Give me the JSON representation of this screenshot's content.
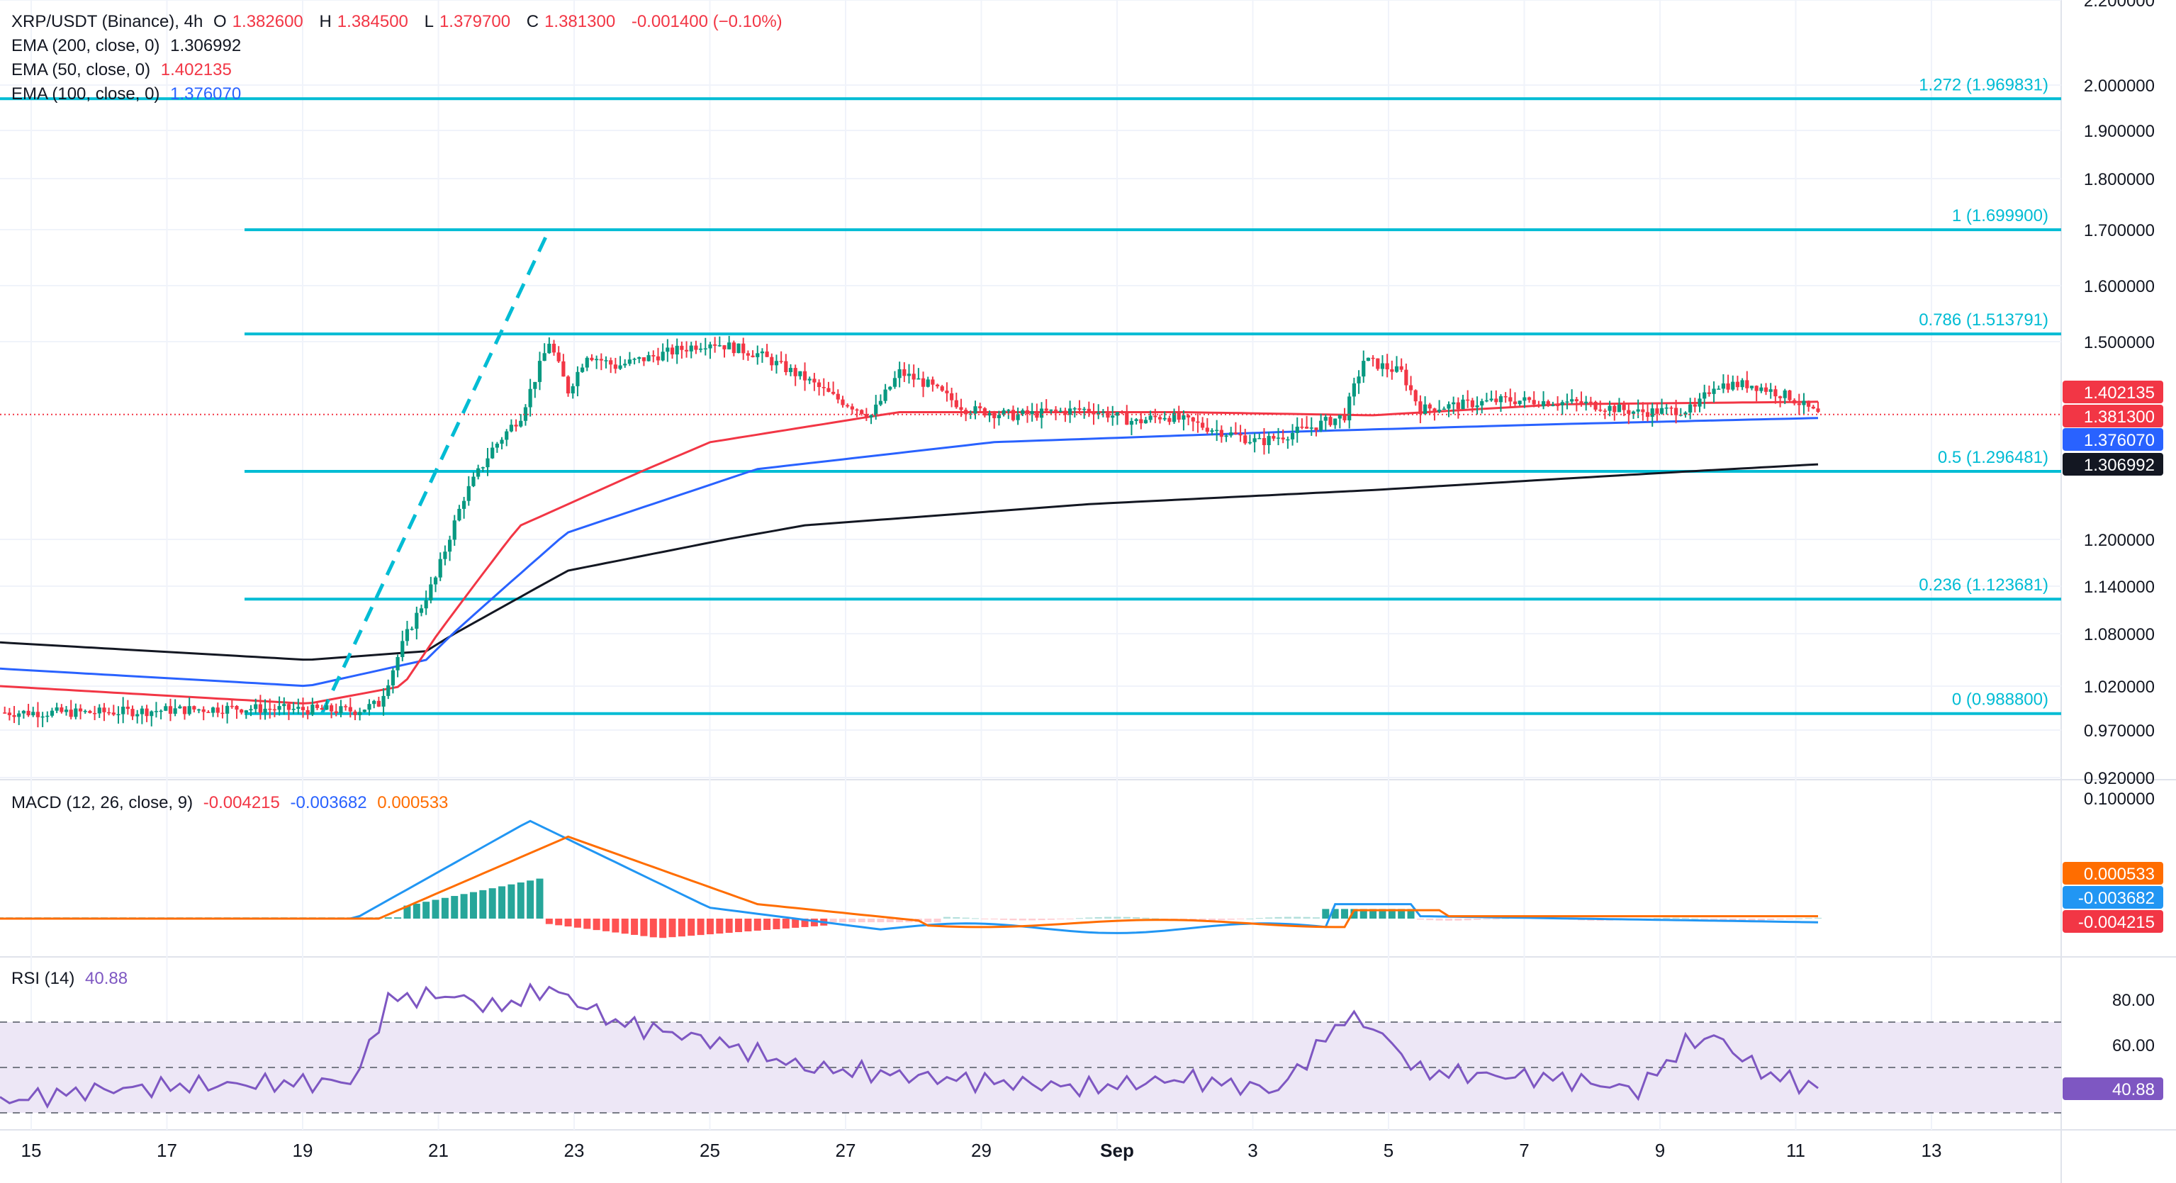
{
  "symbol": {
    "title": "XRP/USDT (Binance), 4h",
    "open_label": "O",
    "open": "1.382600",
    "high_label": "H",
    "high": "1.384500",
    "low_label": "L",
    "low": "1.379700",
    "close_label": "C",
    "close": "1.381300",
    "change": "-0.001400 (−0.10%)"
  },
  "ema_legend": [
    {
      "label": "EMA (200, close, 0)",
      "value": "1.306992",
      "color": "#131722"
    },
    {
      "label": "EMA (50, close, 0)",
      "value": "1.402135",
      "color": "#f23645"
    },
    {
      "label": "EMA (100, close, 0)",
      "value": "1.376070",
      "color": "#2962ff"
    }
  ],
  "macd_legend": {
    "label": "MACD (12, 26, close, 9)",
    "hist": "-0.004215",
    "macd": "-0.003682",
    "signal": "0.000533"
  },
  "rsi_legend": {
    "label": "RSI (14)",
    "value": "40.88"
  },
  "colors": {
    "up": "#089981",
    "down": "#f23645",
    "fib": "#00bcd4",
    "ema200": "#131722",
    "ema50": "#f23645",
    "ema100": "#2962ff",
    "macd": "#2196f3",
    "signal": "#ff6d00",
    "rsi": "#7e57c2",
    "rsi_band": "#ede7f6"
  },
  "chart_data": [
    {
      "type": "candlestick",
      "title": "XRP/USDT (Binance), 4h",
      "x_ticks": [
        "15",
        "17",
        "19",
        "21",
        "23",
        "25",
        "27",
        "29",
        "Sep",
        "3",
        "5",
        "7",
        "9",
        "11",
        "13"
      ],
      "y_ticks": [
        "0.920000",
        "0.970000",
        "1.020000",
        "1.080000",
        "1.140000",
        "1.200000",
        "1.500000",
        "1.600000",
        "1.700000",
        "1.800000",
        "1.900000",
        "2.000000",
        "2.200000"
      ],
      "fibonacci": [
        {
          "label": "1.272 (1.969831)",
          "value": 1.969831
        },
        {
          "label": "1 (1.699900)",
          "value": 1.6999
        },
        {
          "label": "0.786 (1.513791)",
          "value": 1.513791
        },
        {
          "label": "0.5 (1.296481)",
          "value": 1.296481
        },
        {
          "label": "0.236 (1.123681)",
          "value": 1.123681
        },
        {
          "label": "0 (0.988800)",
          "value": 0.9888
        }
      ],
      "price_tags": [
        {
          "value": "1.402135",
          "color": "#f23645"
        },
        {
          "value": "1.381300",
          "color": "#f23645"
        },
        {
          "value": "1.376070",
          "color": "#2962ff"
        },
        {
          "value": "1.306992",
          "color": "#131722"
        }
      ],
      "trend_line": {
        "from_date": "Aug 18",
        "from_price": 0.9888,
        "to_date": "Aug 22",
        "to_price": 1.6999
      },
      "current_price": 1.3813,
      "date_range": [
        "Aug 15",
        "Sep 10"
      ],
      "price_path": [
        [
          0,
          0.99
        ],
        [
          20,
          0.99
        ],
        [
          50,
          0.995
        ],
        [
          75,
          0.992
        ],
        [
          80,
          1.0
        ],
        [
          86,
          1.08
        ],
        [
          92,
          1.15
        ],
        [
          98,
          1.26
        ],
        [
          104,
          1.33
        ],
        [
          110,
          1.38
        ],
        [
          116,
          1.5
        ],
        [
          120,
          1.42
        ],
        [
          124,
          1.48
        ],
        [
          130,
          1.46
        ],
        [
          140,
          1.48
        ],
        [
          150,
          1.5
        ],
        [
          160,
          1.48
        ],
        [
          170,
          1.44
        ],
        [
          176,
          1.41
        ],
        [
          184,
          1.38
        ],
        [
          190,
          1.45
        ],
        [
          196,
          1.43
        ],
        [
          204,
          1.39
        ],
        [
          214,
          1.38
        ],
        [
          230,
          1.39
        ],
        [
          240,
          1.37
        ],
        [
          246,
          1.38
        ],
        [
          256,
          1.36
        ],
        [
          266,
          1.34
        ],
        [
          276,
          1.36
        ],
        [
          284,
          1.38
        ],
        [
          288,
          1.47
        ],
        [
          296,
          1.45
        ],
        [
          300,
          1.39
        ],
        [
          318,
          1.405
        ],
        [
          334,
          1.4
        ],
        [
          346,
          1.385
        ],
        [
          358,
          1.39
        ],
        [
          362,
          1.43
        ],
        [
          370,
          1.43
        ],
        [
          378,
          1.41
        ],
        [
          384,
          1.381
        ]
      ],
      "ema200_path": [
        [
          0,
          1.07
        ],
        [
          65,
          1.05
        ],
        [
          90,
          1.06
        ],
        [
          120,
          1.16
        ],
        [
          170,
          1.22
        ],
        [
          230,
          1.25
        ],
        [
          290,
          1.27
        ],
        [
          340,
          1.29
        ],
        [
          384,
          1.307
        ]
      ],
      "ema100_path": [
        [
          0,
          1.04
        ],
        [
          65,
          1.02
        ],
        [
          90,
          1.05
        ],
        [
          120,
          1.21
        ],
        [
          160,
          1.3
        ],
        [
          210,
          1.34
        ],
        [
          270,
          1.355
        ],
        [
          330,
          1.367
        ],
        [
          384,
          1.376
        ]
      ],
      "ema50_path": [
        [
          0,
          1.02
        ],
        [
          65,
          1.0
        ],
        [
          85,
          1.02
        ],
        [
          110,
          1.22
        ],
        [
          150,
          1.34
        ],
        [
          190,
          1.385
        ],
        [
          250,
          1.385
        ],
        [
          290,
          1.38
        ],
        [
          330,
          1.398
        ],
        [
          384,
          1.402
        ]
      ]
    },
    {
      "type": "macd",
      "title": "MACD (12, 26, close, 9)",
      "y_ticks": [
        "0.100000"
      ],
      "values": {
        "histogram": -0.004215,
        "macd": -0.003682,
        "signal": 0.000533
      }
    },
    {
      "type": "line",
      "title": "RSI (14)",
      "y_ticks": [
        "80.00",
        "60.00"
      ],
      "bands": [
        70,
        50,
        30
      ],
      "current": 40.88
    }
  ]
}
